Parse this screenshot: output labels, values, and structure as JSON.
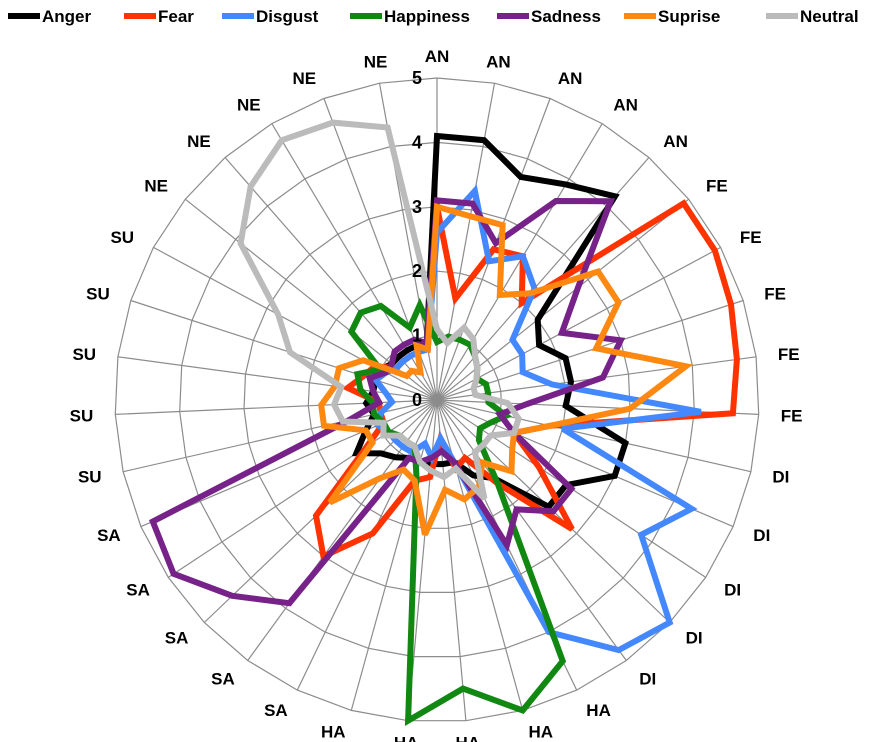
{
  "chart_data": {
    "type": "radar",
    "categories": [
      "AN",
      "AN",
      "AN",
      "AN",
      "AN",
      "FE",
      "FE",
      "FE",
      "FE",
      "FE",
      "DI",
      "DI",
      "DI",
      "DI",
      "DI",
      "HA",
      "HA",
      "HA",
      "HA",
      "HA",
      "SA",
      "SA",
      "SA",
      "SA",
      "SA",
      "SU",
      "SU",
      "SU",
      "SU",
      "SU",
      "NE",
      "NE",
      "NE",
      "NE",
      "NE"
    ],
    "rlim": [
      0,
      5
    ],
    "ticks": [
      0,
      1,
      2,
      3,
      4,
      5
    ],
    "grid": true,
    "legend_position": "top",
    "series": [
      {
        "name": "Anger",
        "color": "#000000",
        "values": [
          4.1,
          4.1,
          3.7,
          3.9,
          4.2,
          2.0,
          1.8,
          2.1,
          2.1,
          2.0,
          3.0,
          3.0,
          2.4,
          2.4,
          1.5,
          1.3,
          1.0,
          1.0,
          1.0,
          1.0,
          1.0,
          1.1,
          1.2,
          1.5,
          1.2,
          1.0,
          1.1,
          1.0,
          1.0,
          1.0,
          0.9,
          0.9,
          0.9,
          0.9,
          0.9
        ]
      },
      {
        "name": "Fear",
        "color": "#ff3300",
        "values": [
          3.0,
          1.6,
          2.5,
          2.6,
          2.0,
          4.9,
          4.9,
          4.8,
          4.7,
          4.6,
          1.8,
          1.3,
          1.9,
          2.9,
          1.6,
          1.0,
          1.1,
          0.6,
          1.2,
          1.3,
          2.3,
          3.0,
          2.6,
          1.3,
          0.9,
          0.9,
          0.9,
          1.4,
          1.2,
          1.1,
          0.8,
          0.8,
          0.8,
          0.8,
          0.8
        ]
      },
      {
        "name": "Disgust",
        "color": "#4488ff",
        "values": [
          2.6,
          3.3,
          2.3,
          2.6,
          2.3,
          1.5,
          1.5,
          1.4,
          1.8,
          4.1,
          2.0,
          4.3,
          3.8,
          5.0,
          4.8,
          4.0,
          1.0,
          0.6,
          0.9,
          0.7,
          0.9,
          0.9,
          0.9,
          0.9,
          1.0,
          0.9,
          0.7,
          0.8,
          1.0,
          0.9,
          0.8,
          0.8,
          0.8,
          0.8,
          0.8
        ]
      },
      {
        "name": "Happiness",
        "color": "#118811",
        "values": [
          0.9,
          1.0,
          1.0,
          1.0,
          0.9,
          0.8,
          0.7,
          0.8,
          0.8,
          0.8,
          1.1,
          0.9,
          0.8,
          0.9,
          1.6,
          4.5,
          5.0,
          4.5,
          5.0,
          1.2,
          0.8,
          0.8,
          0.8,
          0.9,
          0.9,
          1.0,
          1.0,
          1.2,
          1.3,
          1.0,
          1.7,
          1.8,
          1.7,
          1.2,
          1.5
        ]
      },
      {
        "name": "Sadness",
        "color": "#772288",
        "values": [
          3.1,
          3.1,
          2.6,
          3.6,
          4.1,
          2.8,
          2.2,
          3.0,
          2.6,
          1.4,
          1.0,
          1.3,
          2.5,
          2.5,
          2.1,
          2.5,
          1.0,
          0.8,
          0.9,
          1.0,
          1.0,
          3.9,
          4.4,
          4.9,
          4.8,
          1.4,
          0.9,
          1.0,
          1.1,
          0.9,
          0.9,
          1.0,
          1.0,
          1.0,
          0.9
        ]
      },
      {
        "name": "Suprise",
        "color": "#ff8811",
        "values": [
          3.0,
          2.9,
          2.9,
          1.9,
          2.2,
          3.2,
          3.2,
          2.6,
          3.9,
          3.0,
          1.8,
          1.3,
          1.4,
          1.6,
          1.2,
          1.5,
          1.6,
          1.4,
          2.1,
          1.3,
          1.2,
          1.5,
          2.3,
          1.2,
          1.2,
          1.8,
          1.8,
          1.6,
          1.6,
          1.3,
          0.6,
          0.6,
          0.5,
          0.9,
          0.8
        ]
      },
      {
        "name": "Neutral",
        "color": "#bbbbbb",
        "values": [
          1.1,
          0.9,
          1.2,
          1.1,
          0.9,
          0.8,
          0.7,
          0.6,
          0.6,
          1.1,
          1.3,
          1.3,
          1.0,
          1.0,
          1.0,
          1.7,
          1.1,
          1.2,
          1.1,
          1.0,
          0.8,
          0.8,
          0.8,
          1.0,
          0.9,
          1.5,
          1.6,
          1.5,
          2.4,
          2.8,
          3.9,
          4.4,
          4.7,
          4.6,
          4.3
        ]
      }
    ]
  }
}
